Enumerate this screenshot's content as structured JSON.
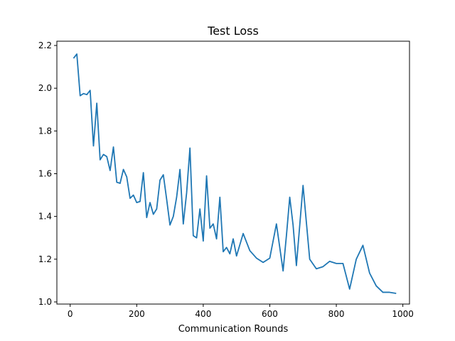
{
  "chart_data": {
    "type": "line",
    "title": "Test Loss",
    "xlabel": "Communication Rounds",
    "ylabel": "",
    "xlim": [
      -40,
      1020
    ],
    "ylim": [
      0.99,
      2.22
    ],
    "xticks": [
      0,
      200,
      400,
      600,
      800,
      1000
    ],
    "yticks": [
      1.0,
      1.2,
      1.4,
      1.6,
      1.8,
      2.0,
      2.2
    ],
    "ytick_labels": [
      "1.0",
      "1.2",
      "1.4",
      "1.6",
      "1.8",
      "2.0",
      "2.2"
    ],
    "xtick_labels": [
      "0",
      "200",
      "400",
      "600",
      "800",
      "1000"
    ],
    "grid": false,
    "legend": "none",
    "series": [
      {
        "color": "#1f77b4",
        "x": [
          10,
          20,
          30,
          40,
          50,
          60,
          70,
          80,
          90,
          100,
          110,
          120,
          130,
          140,
          150,
          160,
          170,
          180,
          190,
          200,
          210,
          220,
          230,
          240,
          250,
          260,
          270,
          280,
          290,
          300,
          310,
          320,
          330,
          340,
          350,
          360,
          370,
          380,
          390,
          400,
          410,
          420,
          430,
          440,
          450,
          460,
          470,
          480,
          490,
          500,
          520,
          540,
          560,
          580,
          600,
          620,
          640,
          650,
          660,
          670,
          680,
          700,
          720,
          740,
          760,
          780,
          800,
          820,
          840,
          860,
          880,
          900,
          920,
          940,
          960,
          980
        ],
        "values": [
          2.14,
          2.16,
          1.965,
          1.975,
          1.97,
          1.99,
          1.73,
          1.93,
          1.665,
          1.69,
          1.68,
          1.615,
          1.725,
          1.56,
          1.555,
          1.62,
          1.585,
          1.485,
          1.5,
          1.465,
          1.47,
          1.605,
          1.395,
          1.465,
          1.41,
          1.435,
          1.57,
          1.595,
          1.48,
          1.36,
          1.4,
          1.49,
          1.62,
          1.365,
          1.51,
          1.72,
          1.31,
          1.3,
          1.435,
          1.285,
          1.59,
          1.345,
          1.365,
          1.295,
          1.49,
          1.235,
          1.255,
          1.225,
          1.295,
          1.215,
          1.32,
          1.24,
          1.205,
          1.185,
          1.205,
          1.365,
          1.145,
          1.31,
          1.49,
          1.36,
          1.17,
          1.545,
          1.2,
          1.155,
          1.165,
          1.19,
          1.18,
          1.18,
          1.06,
          1.2,
          1.265,
          1.135,
          1.075,
          1.045,
          1.045,
          1.04
        ]
      }
    ]
  }
}
